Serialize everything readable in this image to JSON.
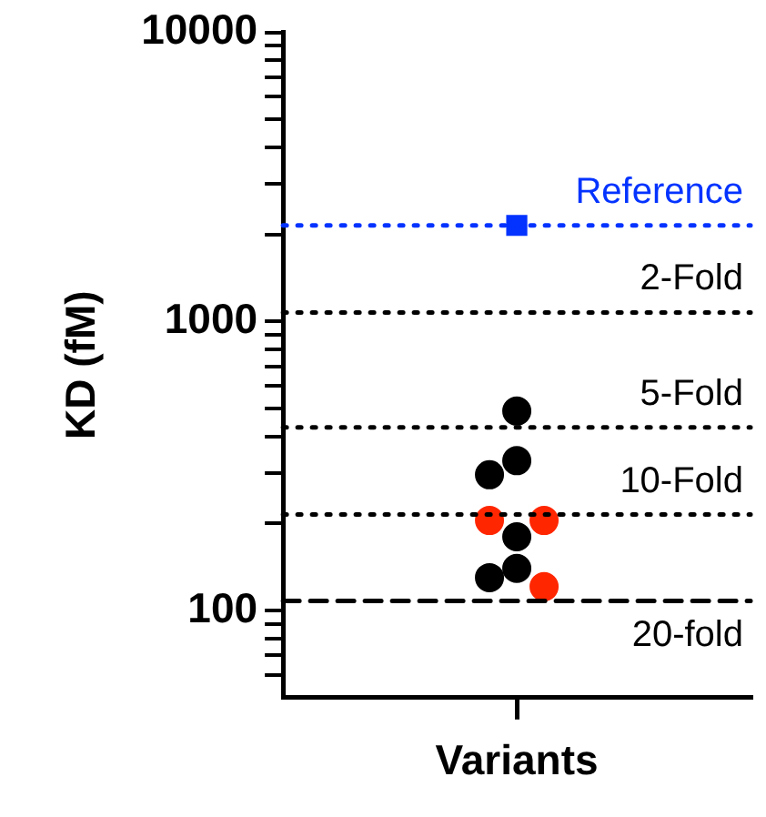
{
  "chart_data": {
    "type": "scatter",
    "ylabel": "KD (fM)",
    "log": "y",
    "grid": false,
    "legend": false,
    "categories": [
      "Variants"
    ],
    "ylim": [
      50,
      10000
    ],
    "yticks": [
      {
        "value": 60,
        "label": null
      },
      {
        "value": 70,
        "label": null
      },
      {
        "value": 80,
        "label": null
      },
      {
        "value": 90,
        "label": null
      },
      100,
      {
        "value": 200,
        "label": null
      },
      {
        "value": 300,
        "label": null
      },
      {
        "value": 400,
        "label": null
      },
      {
        "value": 500,
        "label": null
      },
      {
        "value": 600,
        "label": null
      },
      {
        "value": 700,
        "label": null
      },
      {
        "value": 800,
        "label": null
      },
      {
        "value": 900,
        "label": null
      },
      1000,
      {
        "value": 2000,
        "label": null
      },
      {
        "value": 3000,
        "label": null
      },
      {
        "value": 4000,
        "label": null
      },
      {
        "value": 5000,
        "label": null
      },
      {
        "value": 6000,
        "label": null
      },
      {
        "value": 7000,
        "label": null
      },
      {
        "value": 8000,
        "label": null
      },
      {
        "value": 9000,
        "label": null
      },
      10000
    ],
    "series": [
      {
        "color": "#0433ff",
        "marker": "square",
        "x": [
          "Variants"
        ],
        "values": [
          2150
        ]
      },
      {
        "color": "#000000",
        "marker": "circle",
        "x": [
          "Variants",
          "Variants",
          "Variants",
          "Variants",
          "Variants",
          "Variants"
        ],
        "values": [
          490,
          330,
          295,
          180,
          140,
          130
        ]
      },
      {
        "color": "#ff2600",
        "marker": "circle",
        "x": [
          "Variants",
          "Variants",
          "Variants"
        ],
        "values": [
          205,
          205,
          121
        ]
      }
    ],
    "ref_lines": [
      {
        "axis": "y",
        "value": 2150,
        "label": "Reference",
        "color": "#0433ff",
        "line_style": "dotted"
      },
      {
        "axis": "y",
        "value": 1075,
        "label": "2-Fold",
        "color": "#000000",
        "line_style": "dotted"
      },
      {
        "axis": "y",
        "value": 430,
        "label": "5-Fold",
        "color": "#000000",
        "line_style": "dotted"
      },
      {
        "axis": "y",
        "value": 215,
        "label": "10-Fold",
        "color": "#000000",
        "line_style": "dotted"
      },
      {
        "axis": "y",
        "value": 108,
        "label": "20-fold",
        "color": "#000000",
        "line_style": "dashed"
      }
    ]
  }
}
